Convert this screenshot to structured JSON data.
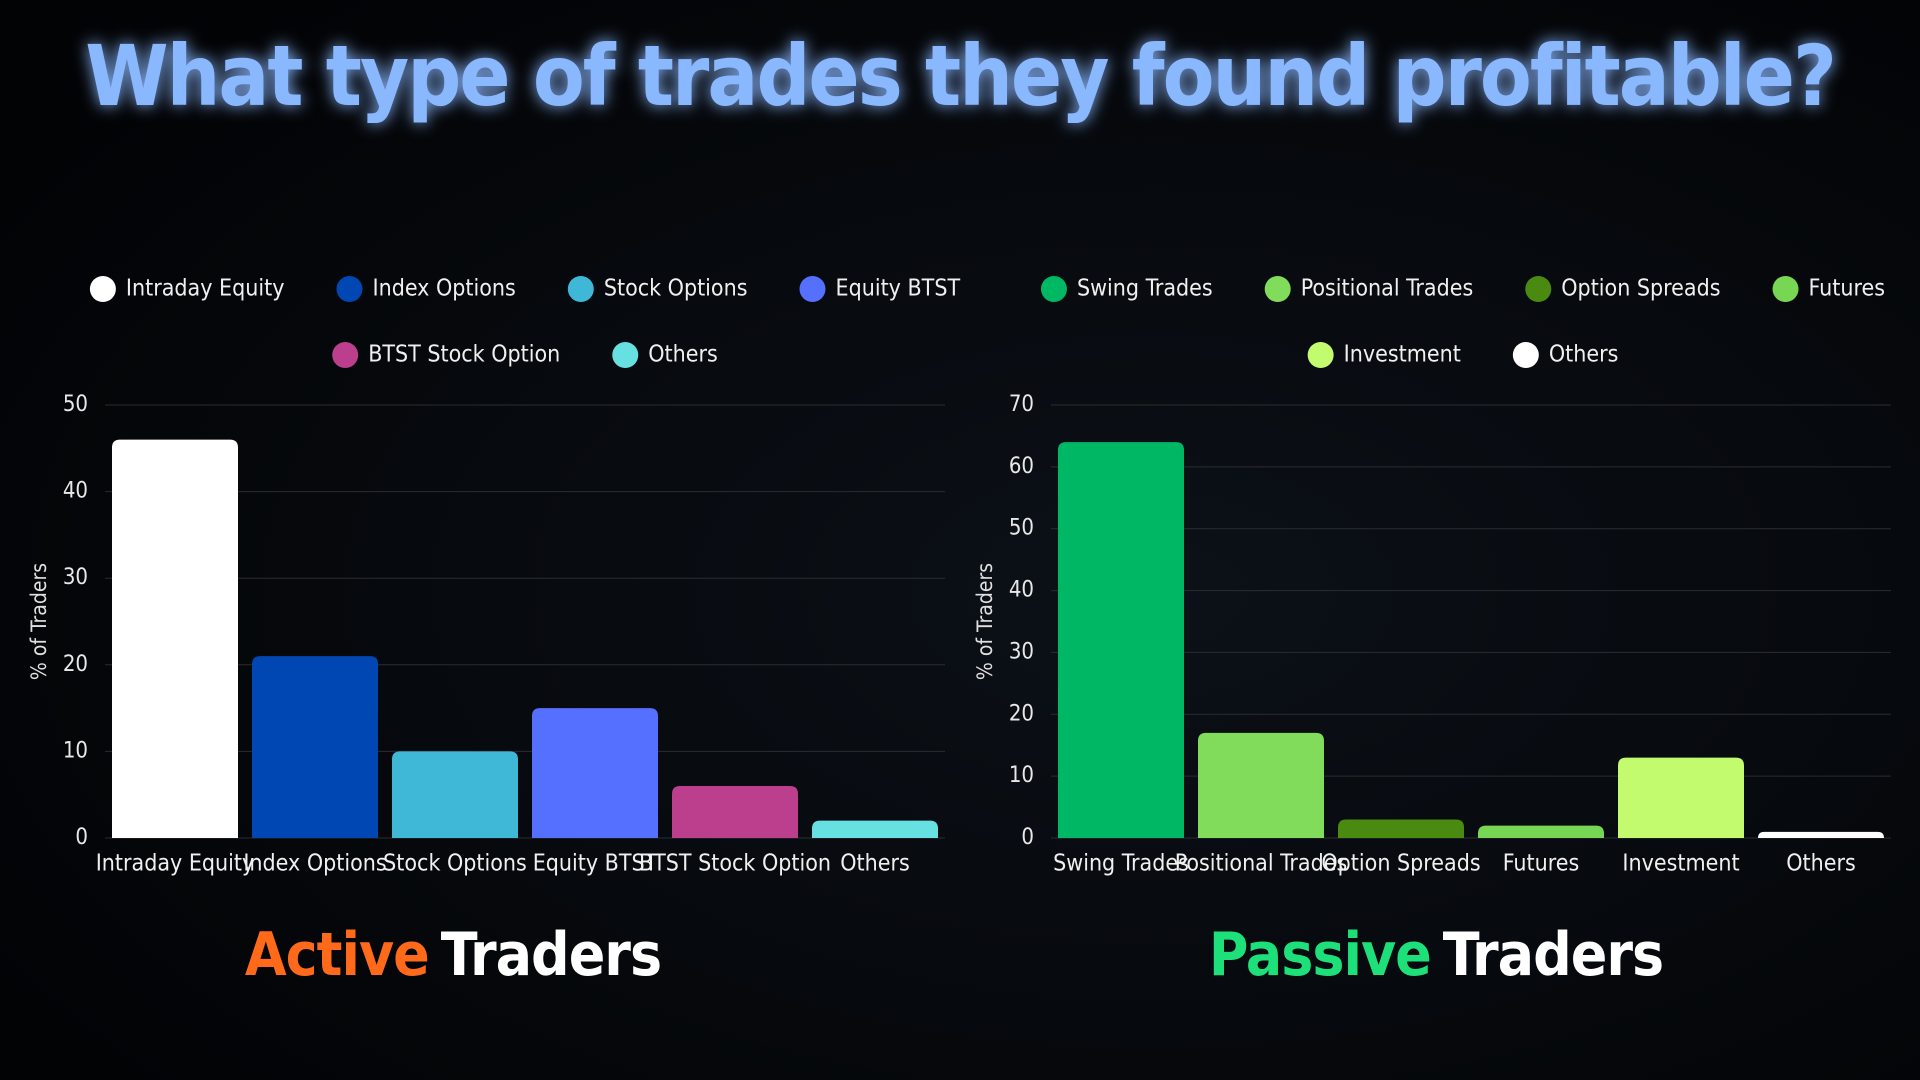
{
  "title": "What type of trades they found profitable?",
  "chart_data": [
    {
      "type": "bar",
      "caption": {
        "highlight": "Active",
        "text": "Traders"
      },
      "highlight_color": "#ff6a1a",
      "ylabel": "% of Traders",
      "categories": [
        "Intraday Equity",
        "Index Options",
        "Stock Options",
        "Equity BTST",
        "BTST Stock Option",
        "Others"
      ],
      "values": [
        46,
        21,
        10,
        15,
        6,
        2
      ],
      "colors": [
        "#ffffff",
        "#0047b3",
        "#3eb8d6",
        "#5570ff",
        "#bb3f8c",
        "#66e0e0"
      ],
      "ylim": [
        0,
        50
      ],
      "yticks": [
        0,
        10,
        20,
        30,
        40,
        50
      ],
      "grid": true,
      "legend": "top"
    },
    {
      "type": "bar",
      "caption": {
        "highlight": "Passive",
        "text": "Traders"
      },
      "highlight_color": "#1ee07a",
      "ylabel": "% of Traders",
      "categories": [
        "Swing Trades",
        "Positional Trades",
        "Option Spreads",
        "Futures",
        "Investment",
        "Others"
      ],
      "values": [
        64,
        17,
        3,
        2,
        13,
        1
      ],
      "colors": [
        "#00b863",
        "#80dc5a",
        "#4a8a10",
        "#78d655",
        "#c2fb6e",
        "#ffffff"
      ],
      "ylim": [
        0,
        70
      ],
      "yticks": [
        0,
        10,
        20,
        30,
        40,
        50,
        60,
        70
      ],
      "grid": true,
      "legend": "top"
    }
  ]
}
